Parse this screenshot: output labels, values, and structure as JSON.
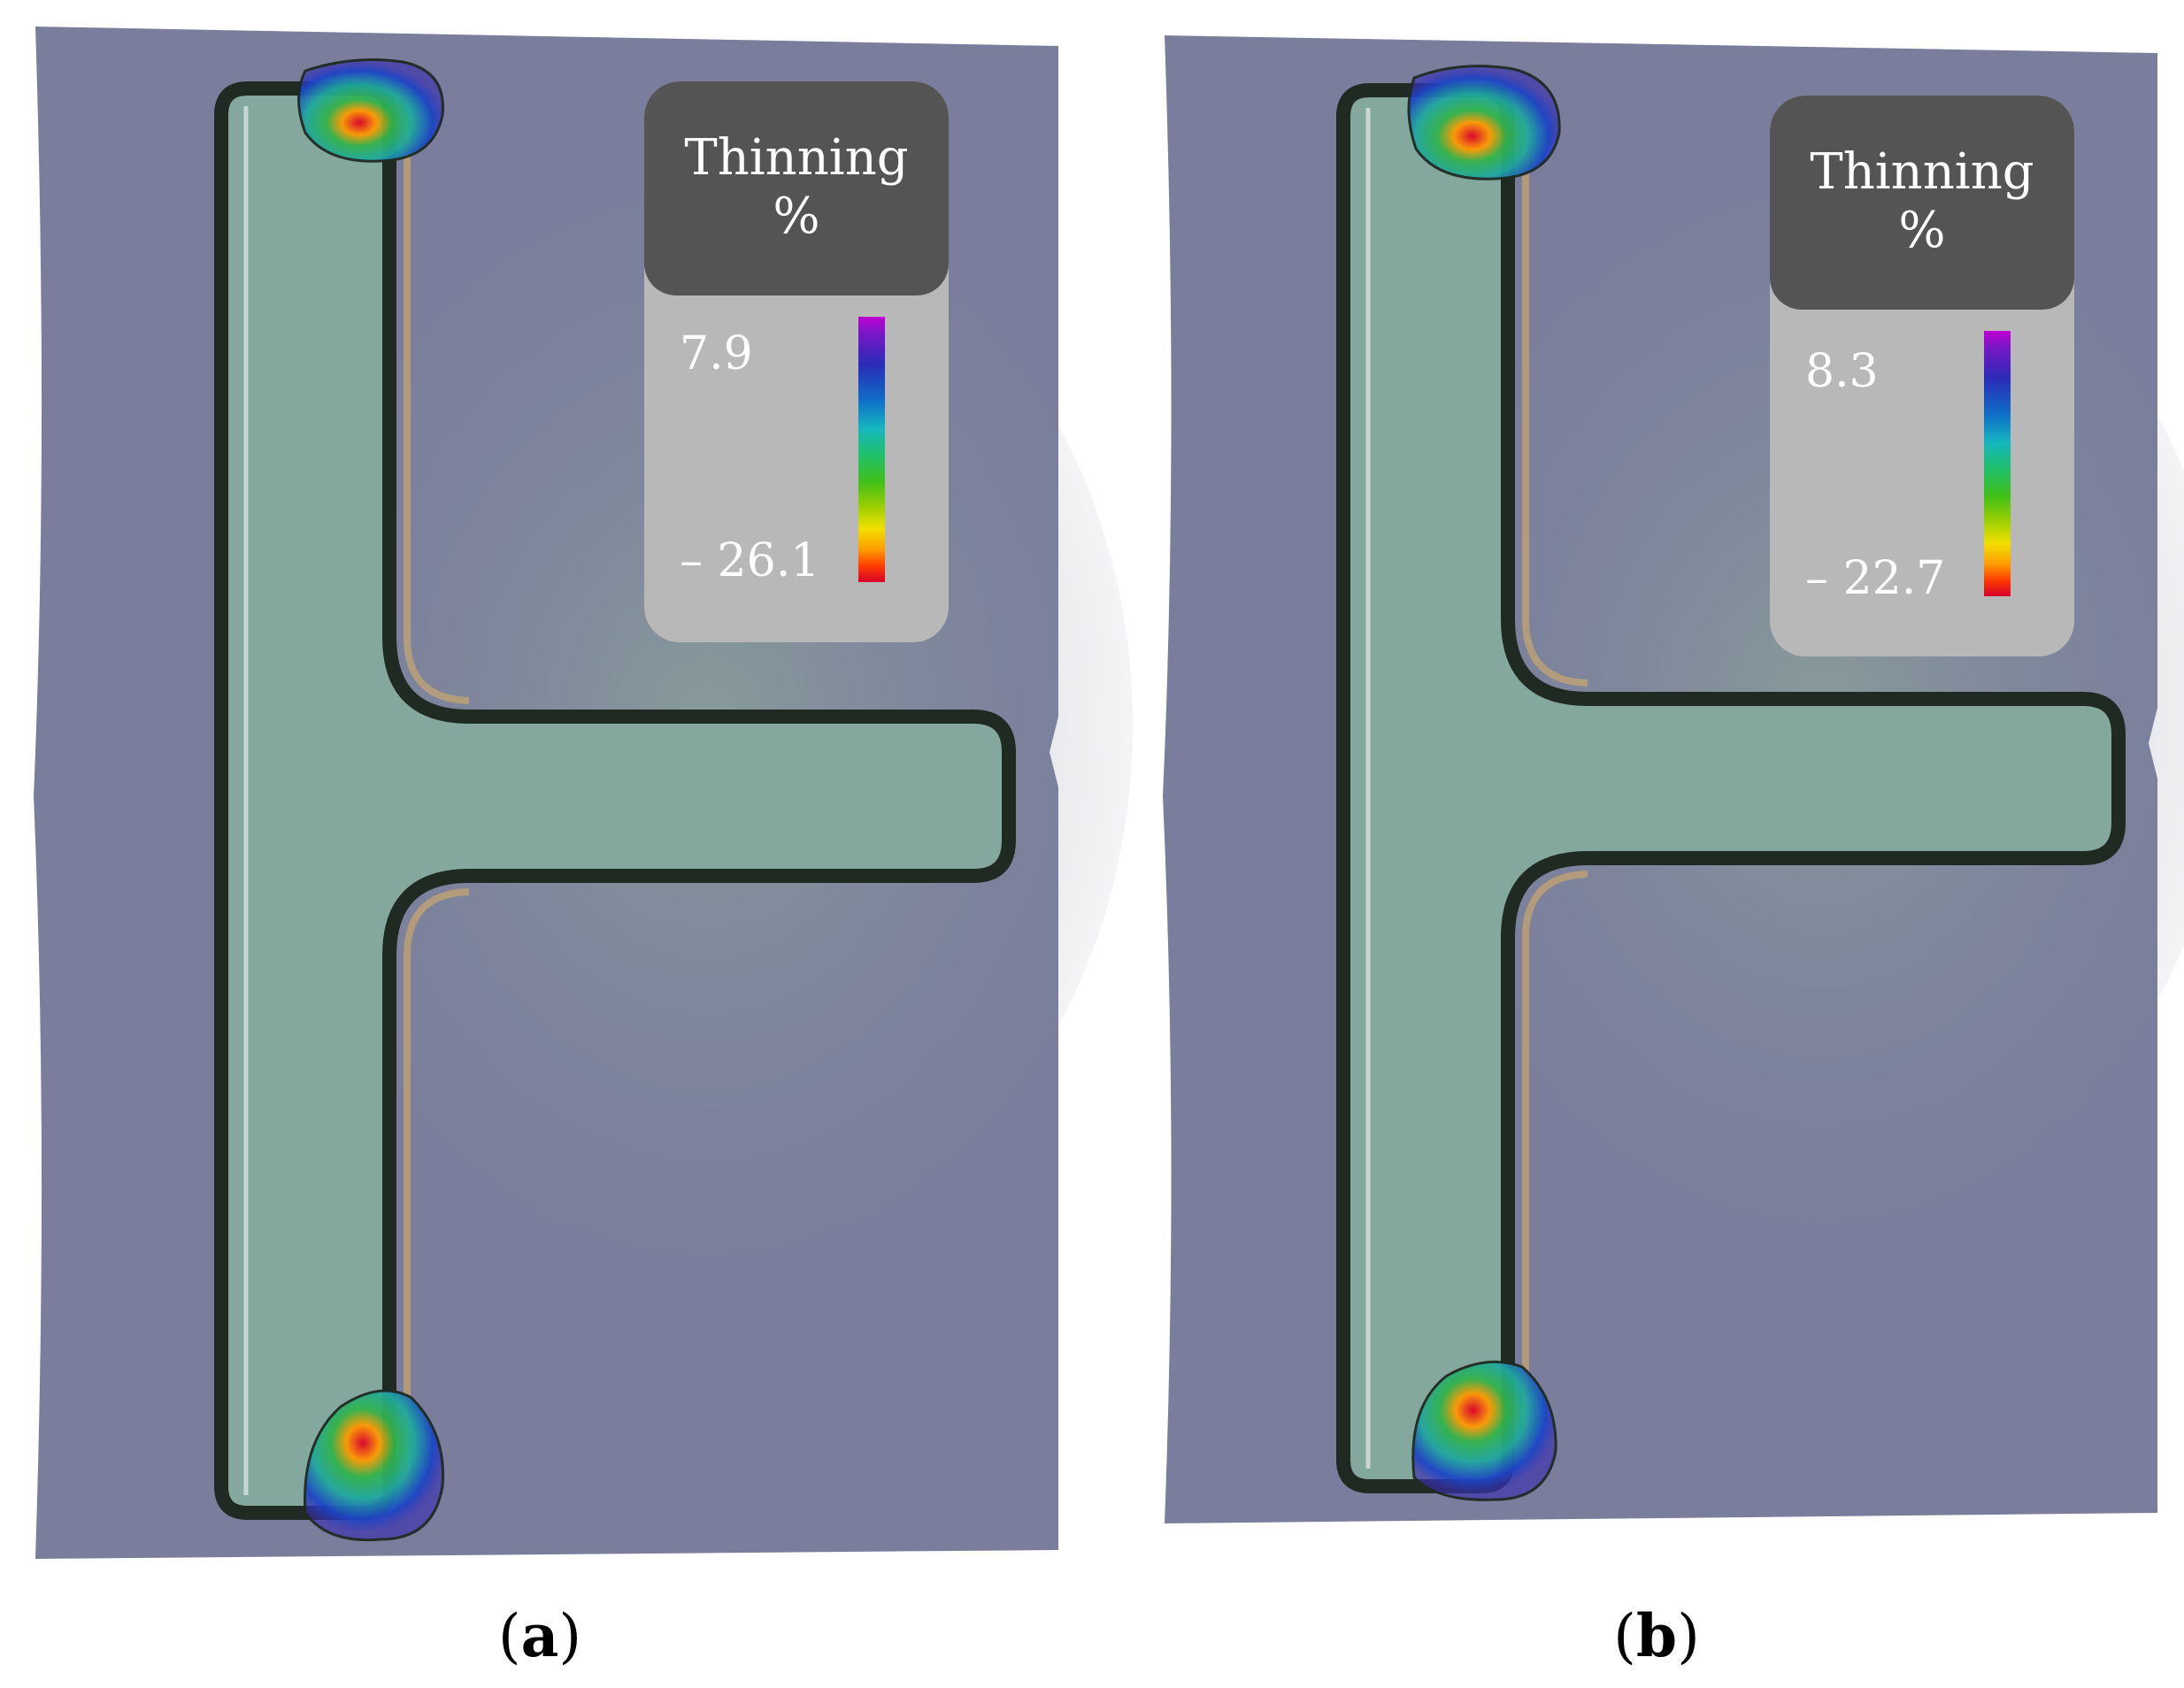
{
  "panels": [
    {
      "id": "a",
      "caption_open": "(",
      "caption_letter": "a",
      "caption_close": ")",
      "legend": {
        "title_line1": "Thinning",
        "title_line2": "%",
        "max_label": "7.9",
        "min_label": "– 26.1"
      }
    },
    {
      "id": "b",
      "caption_open": "(",
      "caption_letter": "b",
      "caption_close": ")",
      "legend": {
        "title_line1": "Thinning",
        "title_line2": "%",
        "max_label": "8.3",
        "min_label": "– 22.7"
      }
    }
  ],
  "colors": {
    "sheet": "#7a7e9c",
    "channel_fill": "#84a79e",
    "channel_edge": "#1e2a22",
    "legend_head": "#545454",
    "legend_body": "#b8b8b8",
    "thinning_max": "#d6002a",
    "thinning_min": "#c100d4"
  }
}
